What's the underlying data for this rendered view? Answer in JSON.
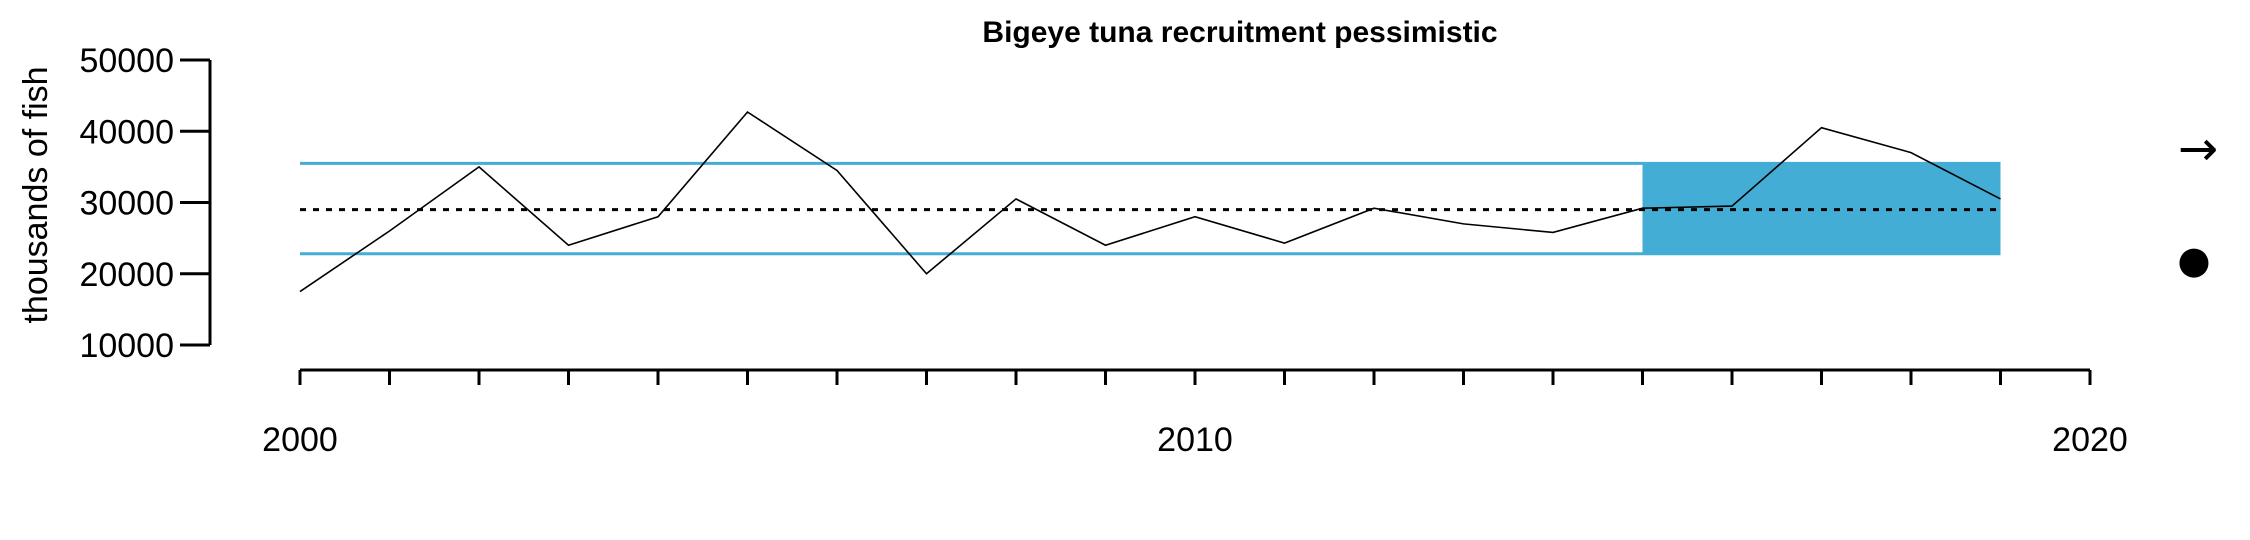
{
  "chart_data": {
    "type": "line",
    "title": "Bigeye tuna recruitment pessimistic",
    "xlabel": "",
    "ylabel": "thousands of fish",
    "xlim": [
      2000,
      2020
    ],
    "ylim": [
      10000,
      50000
    ],
    "x_tick_labels": [
      "2000",
      "2010",
      "2020"
    ],
    "y_tick_labels": [
      "10000",
      "20000",
      "30000",
      "40000",
      "50000"
    ],
    "series": [
      {
        "x": [
          2000,
          2001,
          2002,
          2003,
          2004,
          2005,
          2006,
          2007,
          2008,
          2009,
          2010,
          2011,
          2012,
          2013,
          2014,
          2015,
          2016,
          2017,
          2018,
          2019
        ],
        "values": [
          17500,
          26000,
          35000,
          24000,
          28000,
          42700,
          34500,
          20000,
          30500,
          24000,
          28000,
          24300,
          29200,
          27000,
          25800,
          29200,
          29500,
          40500,
          37000,
          30500
        ]
      }
    ],
    "reference_lines": {
      "mean": 29000,
      "upper": 35500,
      "lower": 22800
    },
    "highlight_band": {
      "x_start": 2015,
      "x_end": 2019,
      "y_low": 22800,
      "y_high": 35500
    },
    "colors": {
      "band": "#43add6",
      "line": "#000000",
      "mean_line": "#000000"
    },
    "side_symbols": {
      "trend": "→",
      "status": "●"
    }
  }
}
